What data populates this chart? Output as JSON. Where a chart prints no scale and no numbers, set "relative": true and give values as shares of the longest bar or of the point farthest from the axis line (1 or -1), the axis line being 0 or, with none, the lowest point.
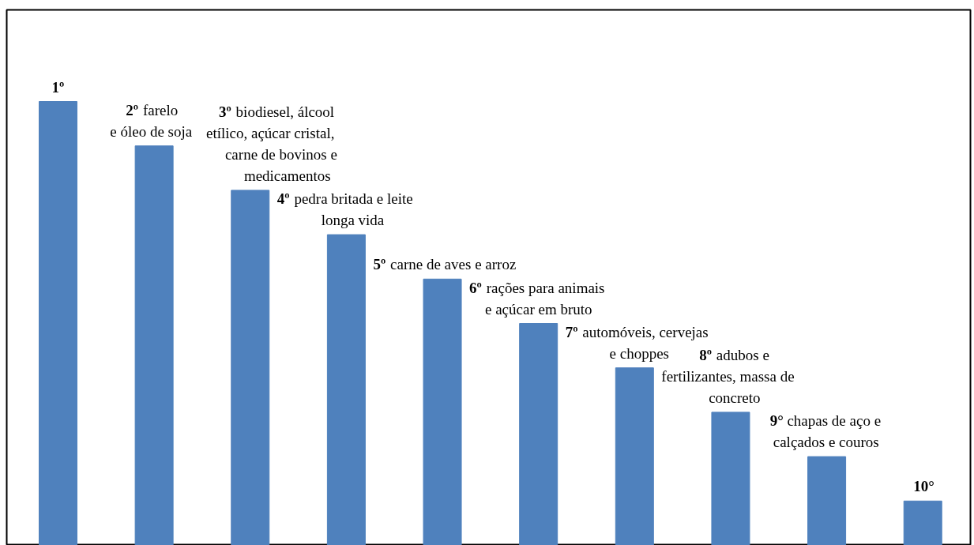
{
  "chart_data": {
    "type": "bar",
    "relative": true,
    "grid": false,
    "color": "#4f81bd",
    "categories": [
      "1º",
      "2º farelo\ne óleo de soja",
      "3º biodiesel, álcool\netílico, açúcar cristal,\ncarne de bovinos e\nmedicamentos",
      "4º pedra britada e leite\nlonga vida",
      "5º carne de aves e arroz",
      "6º rações para animais\ne açúcar em bruto",
      "7º automóveis, cervejas\ne choppes",
      "8º adubos e\nfertilizantes, massa de\nconcreto",
      "9° chapas de aço e\ncalçados e couros",
      "10°"
    ],
    "values": [
      1,
      0.9,
      0.8,
      0.7,
      0.6,
      0.5,
      0.4,
      0.3,
      0.2,
      0.1
    ]
  }
}
